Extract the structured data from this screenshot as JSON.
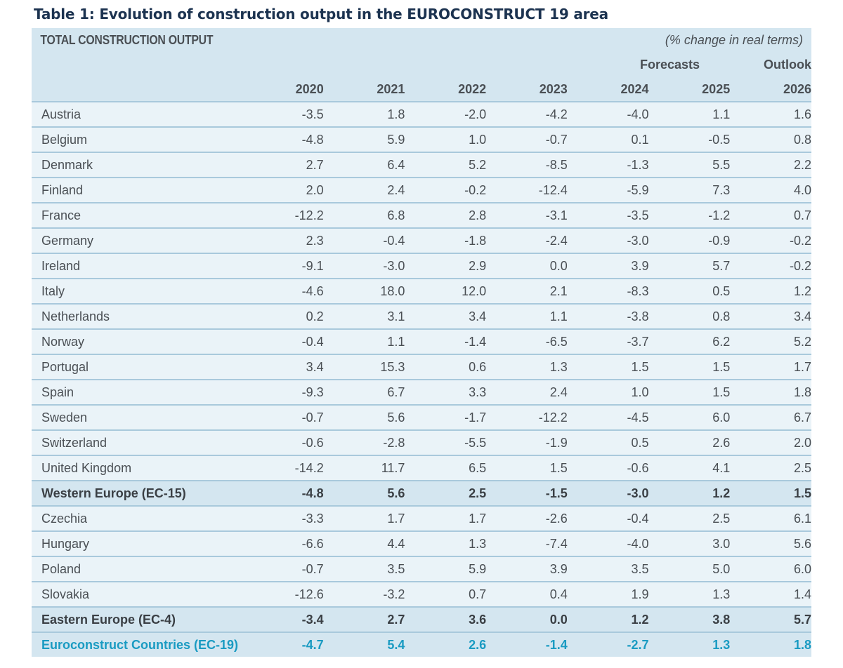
{
  "title": "Table 1: Evolution of construction output in the EUROCONSTRUCT 19 area",
  "table": {
    "main_label": "TOTAL CONSTRUCTION OUTPUT",
    "unit_note": "(% change in real terms)",
    "group_labels": {
      "forecasts": "Forecasts",
      "outlook": "Outlook"
    },
    "years": [
      "2020",
      "2021",
      "2022",
      "2023",
      "2024",
      "2025",
      "2026"
    ],
    "rows": [
      {
        "name": "Austria",
        "type": "country",
        "values": [
          "-3.5",
          "1.8",
          "-2.0",
          "-4.2",
          "-4.0",
          "1.1",
          "1.6"
        ]
      },
      {
        "name": "Belgium",
        "type": "country",
        "values": [
          "-4.8",
          "5.9",
          "1.0",
          "-0.7",
          "0.1",
          "-0.5",
          "0.8"
        ]
      },
      {
        "name": "Denmark",
        "type": "country",
        "values": [
          "2.7",
          "6.4",
          "5.2",
          "-8.5",
          "-1.3",
          "5.5",
          "2.2"
        ]
      },
      {
        "name": "Finland",
        "type": "country",
        "values": [
          "2.0",
          "2.4",
          "-0.2",
          "-12.4",
          "-5.9",
          "7.3",
          "4.0"
        ]
      },
      {
        "name": "France",
        "type": "country",
        "values": [
          "-12.2",
          "6.8",
          "2.8",
          "-3.1",
          "-3.5",
          "-1.2",
          "0.7"
        ]
      },
      {
        "name": "Germany",
        "type": "country",
        "values": [
          "2.3",
          "-0.4",
          "-1.8",
          "-2.4",
          "-3.0",
          "-0.9",
          "-0.2"
        ]
      },
      {
        "name": "Ireland",
        "type": "country",
        "values": [
          "-9.1",
          "-3.0",
          "2.9",
          "0.0",
          "3.9",
          "5.7",
          "-0.2"
        ]
      },
      {
        "name": "Italy",
        "type": "country",
        "values": [
          "-4.6",
          "18.0",
          "12.0",
          "2.1",
          "-8.3",
          "0.5",
          "1.2"
        ]
      },
      {
        "name": "Netherlands",
        "type": "country",
        "values": [
          "0.2",
          "3.1",
          "3.4",
          "1.1",
          "-3.8",
          "0.8",
          "3.4"
        ]
      },
      {
        "name": "Norway",
        "type": "country",
        "values": [
          "-0.4",
          "1.1",
          "-1.4",
          "-6.5",
          "-3.7",
          "6.2",
          "5.2"
        ]
      },
      {
        "name": "Portugal",
        "type": "country",
        "values": [
          "3.4",
          "15.3",
          "0.6",
          "1.3",
          "1.5",
          "1.5",
          "1.7"
        ]
      },
      {
        "name": "Spain",
        "type": "country",
        "values": [
          "-9.3",
          "6.7",
          "3.3",
          "2.4",
          "1.0",
          "1.5",
          "1.8"
        ]
      },
      {
        "name": "Sweden",
        "type": "country",
        "values": [
          "-0.7",
          "5.6",
          "-1.7",
          "-12.2",
          "-4.5",
          "6.0",
          "6.7"
        ]
      },
      {
        "name": "Switzerland",
        "type": "country",
        "values": [
          "-0.6",
          "-2.8",
          "-5.5",
          "-1.9",
          "0.5",
          "2.6",
          "2.0"
        ]
      },
      {
        "name": "United Kingdom",
        "type": "country",
        "values": [
          "-14.2",
          "11.7",
          "6.5",
          "1.5",
          "-0.6",
          "4.1",
          "2.5"
        ]
      },
      {
        "name": "Western Europe (EC-15)",
        "type": "subtotal",
        "values": [
          "-4.8",
          "5.6",
          "2.5",
          "-1.5",
          "-3.0",
          "1.2",
          "1.5"
        ]
      },
      {
        "name": "Czechia",
        "type": "country",
        "values": [
          "-3.3",
          "1.7",
          "1.7",
          "-2.6",
          "-0.4",
          "2.5",
          "6.1"
        ]
      },
      {
        "name": "Hungary",
        "type": "country",
        "values": [
          "-6.6",
          "4.4",
          "1.3",
          "-7.4",
          "-4.0",
          "3.0",
          "5.6"
        ]
      },
      {
        "name": "Poland",
        "type": "country",
        "values": [
          "-0.7",
          "3.5",
          "5.9",
          "3.9",
          "3.5",
          "5.0",
          "6.0"
        ]
      },
      {
        "name": "Slovakia",
        "type": "country",
        "values": [
          "-12.6",
          "-3.2",
          "0.7",
          "0.4",
          "1.9",
          "1.3",
          "1.4"
        ]
      },
      {
        "name": "Eastern Europe (EC-4)",
        "type": "subtotal",
        "values": [
          "-3.4",
          "2.7",
          "3.6",
          "0.0",
          "1.2",
          "3.8",
          "5.7"
        ]
      },
      {
        "name": "Euroconstruct Countries (EC-19)",
        "type": "total",
        "values": [
          "-4.7",
          "5.4",
          "2.6",
          "-1.4",
          "-2.7",
          "1.3",
          "1.8"
        ]
      }
    ]
  },
  "colors": {
    "title": "#1c3350",
    "header_bg": "#d4e6f0",
    "row_bg": "#eaf3f8",
    "divider": "#a9c9dc",
    "text": "#4a4f54",
    "total_accent": "#1a9bc2"
  }
}
